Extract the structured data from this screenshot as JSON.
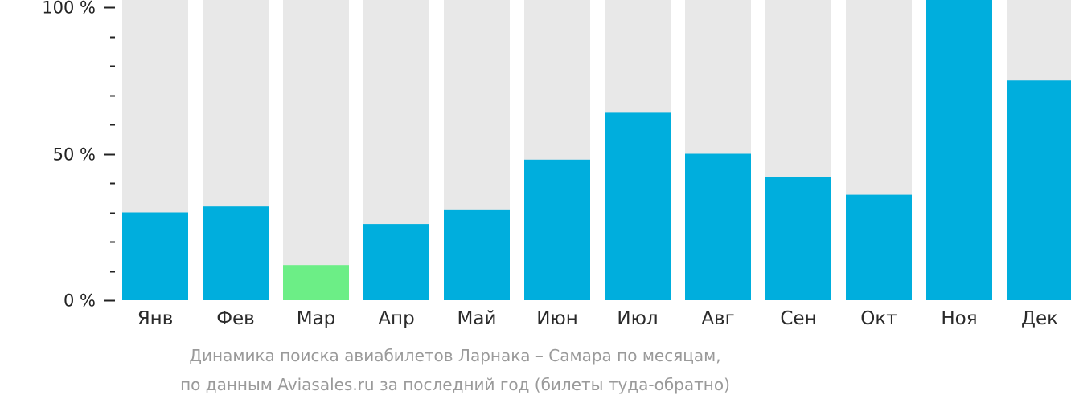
{
  "chart_data": {
    "type": "bar",
    "categories": [
      "Янв",
      "Фев",
      "Мар",
      "Апр",
      "Май",
      "Июн",
      "Июл",
      "Авг",
      "Сен",
      "Окт",
      "Ноя",
      "Дек"
    ],
    "values": [
      30,
      32,
      12,
      26,
      31,
      48,
      64,
      50,
      42,
      36,
      100,
      75
    ],
    "ylim": [
      0,
      100
    ],
    "y_ticks": [
      {
        "value": 0,
        "label": "0 %"
      },
      {
        "value": 50,
        "label": "50 %"
      },
      {
        "value": 100,
        "label": "100 %"
      }
    ],
    "y_minor_tick_step": 10,
    "xlabel": "",
    "ylabel": "",
    "grid": false,
    "legend": "none",
    "highlight_index": 2,
    "colors": {
      "bar": "#00aedd",
      "highlight": "#6cee86",
      "track": "#e8e8e8",
      "axis": "#222222"
    }
  },
  "caption": {
    "line1": "Динамика поиска авиабилетов Ларнака – Самара по месяцам,",
    "line2": "по данным Aviasales.ru за последний год (билеты туда-обратно)"
  }
}
